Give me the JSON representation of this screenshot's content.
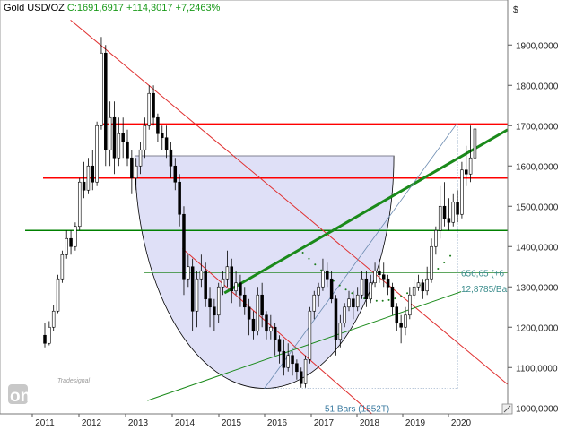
{
  "header": {
    "symbol": "Gold USD/OZ",
    "quote": "C:1691,6917 +114,3017 +7,2463%"
  },
  "currency_symbol": "$",
  "logo": {
    "top": "Tradesignal",
    "brand": "online"
  },
  "annotations": {
    "line_label": "656,65 (+6",
    "angle_label": "12,8785/Ba",
    "bars_label": "51 Bars (1552T)"
  },
  "colors": {
    "candle_up": "#ffffff",
    "candle_down": "#000000",
    "resistance": "#ff0000",
    "support": "#008000",
    "trend_up": "#1a8a1a",
    "bowl_fill": "#dfe0f7",
    "trend_down": "#e03030"
  },
  "chart_data": {
    "type": "candlestick",
    "title": "Gold USD/OZ",
    "ylim": [
      985,
      1985
    ],
    "x_ticks": [
      "2011",
      "2012",
      "2013",
      "2014",
      "2015",
      "2016",
      "2017",
      "2018",
      "2019",
      "2020"
    ],
    "y_ticks": [
      "1900,0000",
      "1800,0000",
      "1700,0000",
      "1600,0000",
      "1500,0000",
      "1400,0000",
      "1300,0000",
      "1200,0000",
      "1100,0000",
      "1000,0000"
    ],
    "y_tick_values": [
      1900,
      1800,
      1700,
      1600,
      1500,
      1400,
      1300,
      1200,
      1100,
      1000
    ],
    "horizontal_levels": [
      {
        "price": 1704,
        "color": "resistance"
      },
      {
        "price": 1570,
        "color": "resistance"
      },
      {
        "price": 1440,
        "color": "support"
      },
      {
        "price": 1335,
        "color": "support-thin"
      }
    ],
    "key_points": [
      {
        "date": "2011-09",
        "price": 1921,
        "label": "high"
      },
      {
        "date": "2015-12",
        "price": 1050,
        "label": "low"
      },
      {
        "date": "2020-04",
        "price": 1691.69,
        "label": "last"
      }
    ],
    "last_close": 1691.6917,
    "change": 114.3017,
    "change_pct": 7.2463,
    "candles": [
      [
        1180,
        1160,
        1210,
        1150
      ],
      [
        1160,
        1200,
        1215,
        1155
      ],
      [
        1200,
        1240,
        1255,
        1190
      ],
      [
        1240,
        1320,
        1330,
        1235
      ],
      [
        1320,
        1380,
        1390,
        1310
      ],
      [
        1380,
        1420,
        1440,
        1370
      ],
      [
        1420,
        1400,
        1440,
        1380
      ],
      [
        1400,
        1450,
        1460,
        1390
      ],
      [
        1450,
        1560,
        1570,
        1440
      ],
      [
        1560,
        1540,
        1610,
        1520
      ],
      [
        1540,
        1600,
        1620,
        1530
      ],
      [
        1600,
        1560,
        1640,
        1540
      ],
      [
        1560,
        1700,
        1710,
        1550
      ],
      [
        1700,
        1880,
        1920,
        1690
      ],
      [
        1880,
        1640,
        1900,
        1600
      ],
      [
        1640,
        1720,
        1760,
        1600
      ],
      [
        1720,
        1620,
        1760,
        1580
      ],
      [
        1620,
        1680,
        1720,
        1600
      ],
      [
        1680,
        1660,
        1720,
        1620
      ],
      [
        1660,
        1620,
        1690,
        1600
      ],
      [
        1620,
        1570,
        1640,
        1530
      ],
      [
        1570,
        1600,
        1620,
        1540
      ],
      [
        1600,
        1640,
        1660,
        1580
      ],
      [
        1640,
        1700,
        1720,
        1620
      ],
      [
        1700,
        1780,
        1800,
        1690
      ],
      [
        1780,
        1720,
        1800,
        1700
      ],
      [
        1720,
        1680,
        1730,
        1660
      ],
      [
        1680,
        1670,
        1700,
        1640
      ],
      [
        1670,
        1640,
        1700,
        1620
      ],
      [
        1640,
        1600,
        1660,
        1570
      ],
      [
        1600,
        1560,
        1620,
        1540
      ],
      [
        1560,
        1480,
        1580,
        1450
      ],
      [
        1480,
        1320,
        1500,
        1280
      ],
      [
        1320,
        1350,
        1380,
        1300
      ],
      [
        1350,
        1240,
        1370,
        1190
      ],
      [
        1240,
        1320,
        1340,
        1200
      ],
      [
        1320,
        1340,
        1380,
        1300
      ],
      [
        1340,
        1270,
        1360,
        1250
      ],
      [
        1270,
        1250,
        1300,
        1200
      ],
      [
        1250,
        1230,
        1270,
        1190
      ],
      [
        1230,
        1300,
        1310,
        1210
      ],
      [
        1300,
        1320,
        1340,
        1280
      ],
      [
        1320,
        1350,
        1390,
        1300
      ],
      [
        1350,
        1290,
        1370,
        1260
      ],
      [
        1290,
        1310,
        1340,
        1280
      ],
      [
        1310,
        1280,
        1330,
        1250
      ],
      [
        1280,
        1250,
        1300,
        1230
      ],
      [
        1250,
        1220,
        1270,
        1180
      ],
      [
        1220,
        1190,
        1240,
        1170
      ],
      [
        1190,
        1280,
        1300,
        1180
      ],
      [
        1280,
        1230,
        1310,
        1200
      ],
      [
        1230,
        1190,
        1240,
        1170
      ],
      [
        1190,
        1200,
        1230,
        1170
      ],
      [
        1200,
        1170,
        1210,
        1130
      ],
      [
        1170,
        1140,
        1180,
        1110
      ],
      [
        1140,
        1100,
        1170,
        1080
      ],
      [
        1100,
        1130,
        1160,
        1090
      ],
      [
        1130,
        1110,
        1140,
        1080
      ],
      [
        1110,
        1090,
        1120,
        1070
      ],
      [
        1090,
        1060,
        1100,
        1050
      ],
      [
        1060,
        1120,
        1130,
        1050
      ],
      [
        1120,
        1240,
        1250,
        1110
      ],
      [
        1240,
        1280,
        1290,
        1220
      ],
      [
        1280,
        1300,
        1310,
        1250
      ],
      [
        1300,
        1340,
        1370,
        1290
      ],
      [
        1340,
        1320,
        1360,
        1300
      ],
      [
        1320,
        1270,
        1340,
        1260
      ],
      [
        1270,
        1170,
        1280,
        1130
      ],
      [
        1170,
        1210,
        1230,
        1150
      ],
      [
        1210,
        1250,
        1260,
        1200
      ],
      [
        1250,
        1270,
        1290,
        1240
      ],
      [
        1270,
        1250,
        1290,
        1220
      ],
      [
        1250,
        1280,
        1300,
        1240
      ],
      [
        1280,
        1320,
        1340,
        1270
      ],
      [
        1320,
        1270,
        1340,
        1250
      ],
      [
        1270,
        1310,
        1330,
        1260
      ],
      [
        1310,
        1340,
        1360,
        1300
      ],
      [
        1340,
        1330,
        1370,
        1310
      ],
      [
        1330,
        1320,
        1360,
        1300
      ],
      [
        1320,
        1300,
        1330,
        1280
      ],
      [
        1300,
        1250,
        1310,
        1230
      ],
      [
        1250,
        1210,
        1260,
        1190
      ],
      [
        1210,
        1200,
        1230,
        1160
      ],
      [
        1200,
        1230,
        1250,
        1180
      ],
      [
        1230,
        1280,
        1300,
        1220
      ],
      [
        1280,
        1300,
        1320,
        1270
      ],
      [
        1300,
        1310,
        1330,
        1290
      ],
      [
        1310,
        1290,
        1320,
        1270
      ],
      [
        1290,
        1320,
        1350,
        1280
      ],
      [
        1320,
        1400,
        1420,
        1310
      ],
      [
        1400,
        1440,
        1450,
        1380
      ],
      [
        1440,
        1500,
        1550,
        1420
      ],
      [
        1500,
        1470,
        1560,
        1450
      ],
      [
        1470,
        1460,
        1520,
        1440
      ],
      [
        1460,
        1510,
        1530,
        1450
      ],
      [
        1510,
        1480,
        1540,
        1460
      ],
      [
        1480,
        1590,
        1610,
        1470
      ],
      [
        1590,
        1580,
        1650,
        1550
      ],
      [
        1580,
        1620,
        1700,
        1560
      ],
      [
        1620,
        1691.69,
        1705,
        1600
      ]
    ]
  }
}
